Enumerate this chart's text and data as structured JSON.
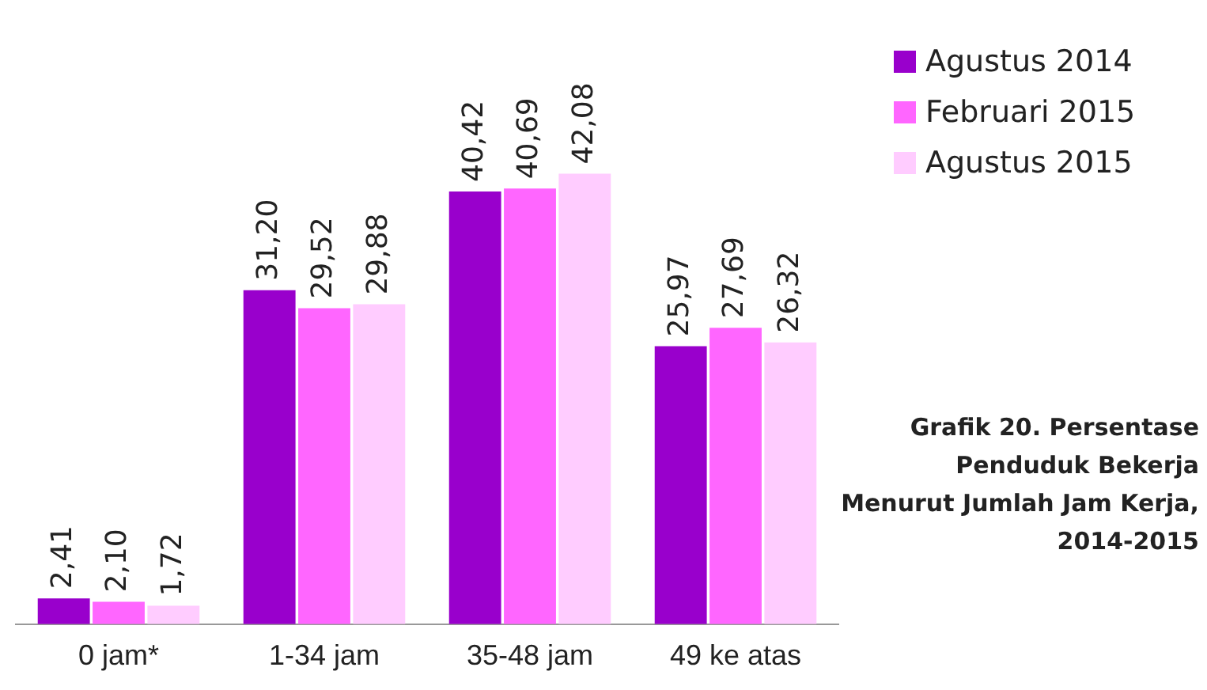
{
  "chart_data": {
    "type": "bar",
    "title": "Grafik 20. Persentase Penduduk Bekerja Menurut Jumlah Jam Kerja, 2014-2015",
    "categories": [
      "0 jam*",
      "1-34 jam",
      "35-48 jam",
      "49 ke atas"
    ],
    "series": [
      {
        "name": "Agustus 2014",
        "color": "#9900cc",
        "values": [
          2.41,
          31.2,
          40.42,
          25.97
        ],
        "value_labels": [
          "2,41",
          "31,20",
          "40,42",
          "25,97"
        ]
      },
      {
        "name": "Februari 2015",
        "color": "#ff66ff",
        "values": [
          2.1,
          29.52,
          40.69,
          27.69
        ],
        "value_labels": [
          "2,10",
          "29,52",
          "40,69",
          "27,69"
        ]
      },
      {
        "name": "Agustus 2015",
        "color": "#ffccff",
        "values": [
          1.72,
          29.88,
          42.08,
          26.32
        ],
        "value_labels": [
          "1,72",
          "29,88",
          "42,08",
          "26,32"
        ]
      }
    ],
    "legend": "top right",
    "grid": false,
    "tick_labels": "x"
  }
}
